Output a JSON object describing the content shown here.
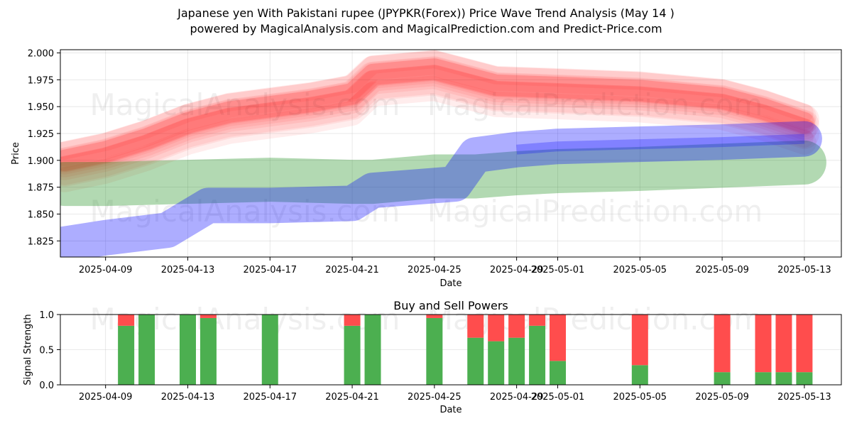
{
  "title": {
    "line1": "Japanese yen With Pakistani rupee (JPYPKR(Forex)) Price Wave Trend Analysis (May 14 )",
    "line2": "powered by MagicalAnalysis.com and MagicalPrediction.com and Predict-Price.com"
  },
  "watermarks": [
    "MagicalAnalysis.com",
    "MagicalPrediction.com"
  ],
  "colors": {
    "red_band": "#ff0000",
    "blue_band": "#0000ff",
    "green_band": "#008000",
    "buy": "#4caf50",
    "sell": "#ff4d4d"
  },
  "chart_data": [
    {
      "type": "area",
      "title": "",
      "xlabel": "Date",
      "ylabel": "Price",
      "ylim": [
        1.81,
        2.003
      ],
      "xlim": [
        "2025-04-07",
        "2025-05-15"
      ],
      "x_ticks": [
        "2025-04-09",
        "2025-04-13",
        "2025-04-17",
        "2025-04-21",
        "2025-04-25",
        "2025-04-29",
        "2025-05-01",
        "2025-05-05",
        "2025-05-09",
        "2025-05-13"
      ],
      "y_ticks": [
        "1.825",
        "1.850",
        "1.875",
        "1.900",
        "1.925",
        "1.950",
        "1.975",
        "2.000"
      ],
      "grid": true,
      "series": [
        {
          "color": "red",
          "x": [
            "2025-04-07",
            "2025-04-09",
            "2025-04-11",
            "2025-04-13",
            "2025-04-15",
            "2025-04-17",
            "2025-04-19",
            "2025-04-21",
            "2025-04-22",
            "2025-04-25",
            "2025-04-28",
            "2025-05-01",
            "2025-05-05",
            "2025-05-09",
            "2025-05-11",
            "2025-05-13"
          ],
          "values": [
            1.9,
            1.908,
            1.92,
            1.935,
            1.945,
            1.95,
            1.955,
            1.962,
            1.98,
            1.985,
            1.97,
            1.968,
            1.965,
            1.958,
            1.948,
            1.935
          ]
        },
        {
          "color": "blue",
          "x": [
            "2025-04-07",
            "2025-04-09",
            "2025-04-12",
            "2025-04-14",
            "2025-04-17",
            "2025-04-21",
            "2025-04-22",
            "2025-04-26",
            "2025-04-27",
            "2025-04-29",
            "2025-05-01",
            "2025-05-05",
            "2025-05-09",
            "2025-05-13"
          ],
          "values": [
            1.822,
            1.828,
            1.835,
            1.858,
            1.858,
            1.86,
            1.872,
            1.878,
            1.905,
            1.91,
            1.913,
            1.915,
            1.917,
            1.92
          ]
        },
        {
          "color": "green",
          "x": [
            "2025-04-07",
            "2025-04-09",
            "2025-04-13",
            "2025-04-17",
            "2025-04-21",
            "2025-04-22",
            "2025-04-25",
            "2025-04-27",
            "2025-04-29",
            "2025-05-01",
            "2025-05-05",
            "2025-05-09",
            "2025-05-13"
          ],
          "values": [
            1.878,
            1.878,
            1.88,
            1.882,
            1.88,
            1.88,
            1.885,
            1.885,
            1.888,
            1.89,
            1.892,
            1.895,
            1.898
          ]
        }
      ]
    },
    {
      "type": "bar",
      "title": "Buy and Sell Powers",
      "xlabel": "Date",
      "ylabel": "Signal Strength",
      "ylim": [
        0,
        1
      ],
      "y_ticks": [
        "0.0",
        "0.5",
        "1.0"
      ],
      "x_ticks": [
        "2025-04-09",
        "2025-04-13",
        "2025-04-17",
        "2025-04-21",
        "2025-04-25",
        "2025-04-29",
        "2025-05-01",
        "2025-05-05",
        "2025-05-09",
        "2025-05-13"
      ],
      "grid": true,
      "categories": [
        "2025-04-10",
        "2025-04-11",
        "2025-04-13",
        "2025-04-14",
        "2025-04-17",
        "2025-04-21",
        "2025-04-22",
        "2025-04-25",
        "2025-04-27",
        "2025-04-28",
        "2025-04-29",
        "2025-04-30",
        "2025-05-01",
        "2025-05-05",
        "2025-05-09",
        "2025-05-11",
        "2025-05-12",
        "2025-05-13"
      ],
      "series": [
        {
          "name": "Buy",
          "values": [
            0.84,
            1.0,
            1.0,
            0.95,
            1.0,
            0.84,
            1.0,
            0.95,
            0.67,
            0.62,
            0.67,
            0.84,
            0.34,
            0.28,
            0.18,
            0.18,
            0.18,
            0.18
          ]
        },
        {
          "name": "Sell",
          "values": [
            0.16,
            0.0,
            0.0,
            0.05,
            0.0,
            0.16,
            0.0,
            0.05,
            0.33,
            0.38,
            0.33,
            0.16,
            0.66,
            0.72,
            0.82,
            0.82,
            0.82,
            0.82
          ]
        }
      ]
    }
  ]
}
